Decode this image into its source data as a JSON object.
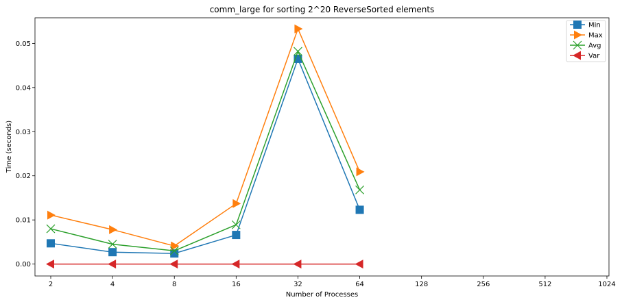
{
  "chart_data": {
    "type": "line",
    "title": "comm_large for sorting 2^20 ReverseSorted elements",
    "xlabel": "Number of Processes",
    "ylabel": "Time (seconds)",
    "x_categories": [
      "2",
      "4",
      "8",
      "16",
      "32",
      "64",
      "128",
      "256",
      "512",
      "1024"
    ],
    "y_ticks": [
      "0.00",
      "0.01",
      "0.02",
      "0.03",
      "0.04",
      "0.05"
    ],
    "ylim": [
      -0.0027,
      0.0558
    ],
    "grid": false,
    "legend_position": "top-right",
    "series": [
      {
        "name": "Min",
        "color": "#1f77b4",
        "marker": "square",
        "values": [
          0.0047,
          0.0027,
          0.0024,
          0.0066,
          0.0465,
          0.0123
        ]
      },
      {
        "name": "Max",
        "color": "#ff7f0e",
        "marker": "triangle-right",
        "values": [
          0.0111,
          0.0078,
          0.0041,
          0.0137,
          0.0533,
          0.0209
        ]
      },
      {
        "name": "Avg",
        "color": "#2ca02c",
        "marker": "x",
        "values": [
          0.008,
          0.0045,
          0.003,
          0.0089,
          0.0482,
          0.0168
        ]
      },
      {
        "name": "Var",
        "color": "#d62728",
        "marker": "triangle-left",
        "values": [
          0.0,
          0.0,
          0.0,
          0.0,
          0.0,
          0.0
        ]
      }
    ]
  }
}
